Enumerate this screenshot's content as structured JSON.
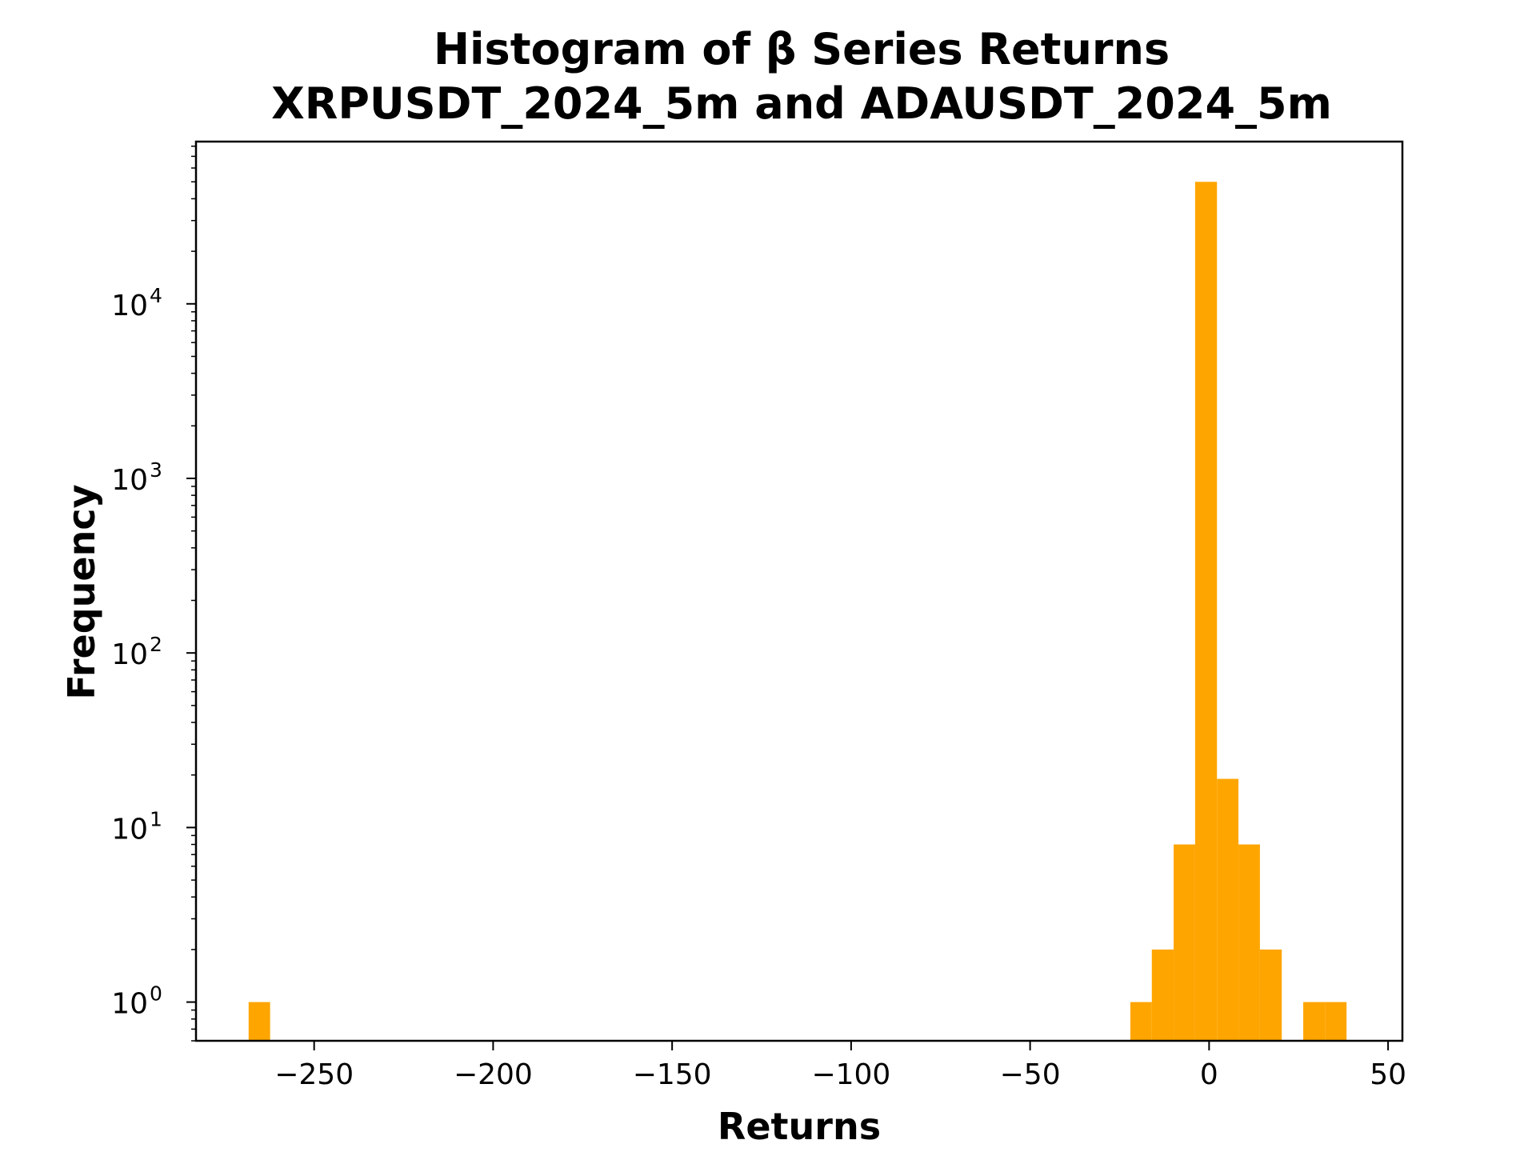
{
  "chart_data": {
    "type": "bar",
    "title_line1": "Histogram of β Series Returns",
    "title_line2": "XRPUSDT_2024_5m and ADAUSDT_2024_5m",
    "xlabel": "Returns",
    "ylabel": "Frequency",
    "y_scale": "log",
    "xlim": [
      -283,
      54
    ],
    "ylim": [
      0.6,
      85000
    ],
    "grid": false,
    "bar_color": "#FFA500",
    "x_ticks": [
      -250,
      -200,
      -150,
      -100,
      -50,
      0,
      50
    ],
    "x_tick_labels": [
      "−250",
      "−200",
      "−150",
      "−100",
      "−50",
      "0",
      "50"
    ],
    "y_ticks": [
      {
        "base": "10",
        "exp": "0",
        "value": 1
      },
      {
        "base": "10",
        "exp": "1",
        "value": 10
      },
      {
        "base": "10",
        "exp": "2",
        "value": 100
      },
      {
        "base": "10",
        "exp": "3",
        "value": 1000
      },
      {
        "base": "10",
        "exp": "4",
        "value": 10000
      }
    ],
    "bins": [
      {
        "x0": -268.3,
        "x1": -262.3,
        "count": 1
      },
      {
        "x0": -22.0,
        "x1": -16.0,
        "count": 1
      },
      {
        "x0": -16.0,
        "x1": -9.9,
        "count": 2
      },
      {
        "x0": -9.9,
        "x1": -3.9,
        "count": 8
      },
      {
        "x0": -3.9,
        "x1": 2.2,
        "count": 50000
      },
      {
        "x0": 2.2,
        "x1": 8.2,
        "count": 19
      },
      {
        "x0": 8.2,
        "x1": 14.2,
        "count": 8
      },
      {
        "x0": 14.2,
        "x1": 20.3,
        "count": 2
      },
      {
        "x0": 26.3,
        "x1": 32.4,
        "count": 1
      },
      {
        "x0": 32.4,
        "x1": 38.4,
        "count": 1
      }
    ]
  }
}
